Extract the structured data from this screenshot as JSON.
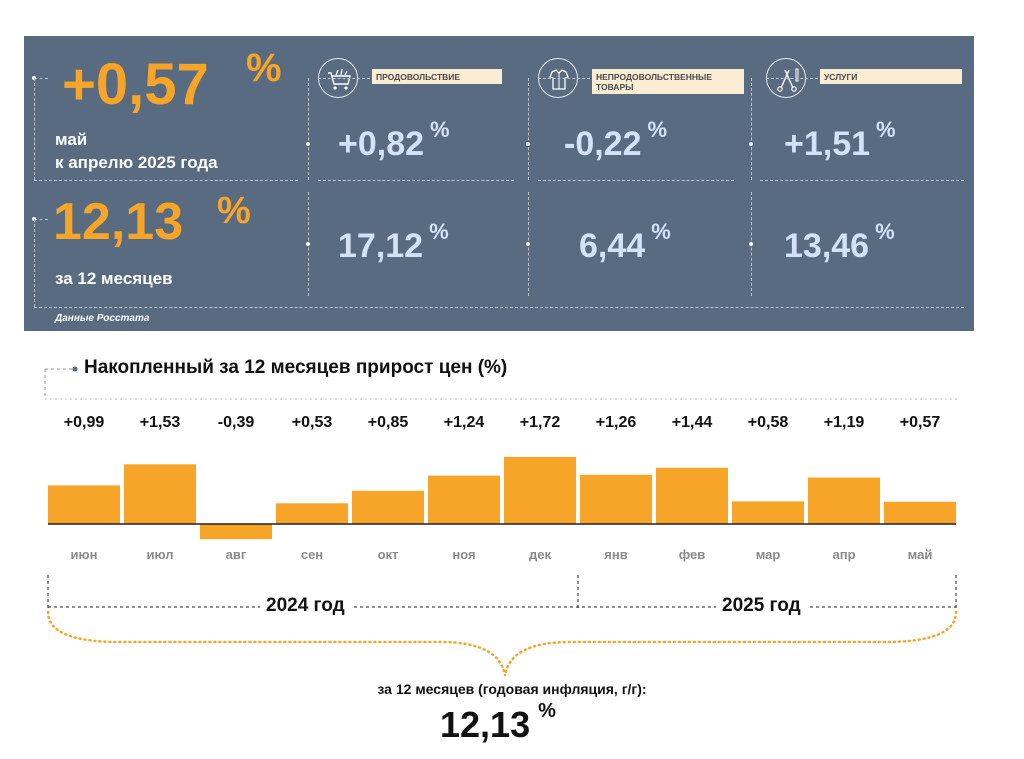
{
  "colors": {
    "panel": "#596b80",
    "accent_orange": "#f7a529",
    "light_blue": "#d2e3f7",
    "tag_bg": "#fbecd4"
  },
  "summary": {
    "monthly": {
      "value": "+0,57",
      "unit": "%",
      "label_line1": "май",
      "label_line2": "к апрелю 2025 года"
    },
    "annual": {
      "value": "12,13",
      "unit": "%",
      "label": "за 12 месяцев"
    },
    "source": "Данные Росстата"
  },
  "categories": [
    {
      "name": "ПРОДОВОЛЬСТВИЕ",
      "icon": "shopping-cart-icon",
      "monthly": "+0,82",
      "annual": "17,12",
      "unit": "%"
    },
    {
      "name": "НЕПРОДОВОЛЬСТВЕННЫЕ ТОВАРЫ",
      "icon": "clothing-icon",
      "monthly": "-0,22",
      "annual": "6,44",
      "unit": "%"
    },
    {
      "name": "УСЛУГИ",
      "icon": "scissors-comb-icon",
      "monthly": "+1,51",
      "annual": "13,46",
      "unit": "%"
    }
  ],
  "chart_data": {
    "type": "bar",
    "title": "Накопленный за 12 месяцев прирост цен (%)",
    "categories": [
      "июн",
      "июл",
      "авг",
      "сен",
      "окт",
      "ноя",
      "дек",
      "янв",
      "фев",
      "мар",
      "апр",
      "май"
    ],
    "values": [
      0.99,
      1.53,
      -0.39,
      0.53,
      0.85,
      1.24,
      1.72,
      1.26,
      1.44,
      0.58,
      1.19,
      0.57
    ],
    "value_labels": [
      "+0,99",
      "+1,53",
      "-0,39",
      "+0,53",
      "+0,85",
      "+1,24",
      "+1,72",
      "+1,26",
      "+1,44",
      "+0,58",
      "+1,19",
      "+0,57"
    ],
    "year_groups": [
      {
        "label": "2024 год",
        "months": 7
      },
      {
        "label": "2025 год",
        "months": 5
      }
    ],
    "bar_color": "#f7a529",
    "grid": false
  },
  "footer": {
    "caption": "за 12 месяцев (годовая инфляция, г/г):",
    "value": "12,13",
    "unit": "%"
  }
}
